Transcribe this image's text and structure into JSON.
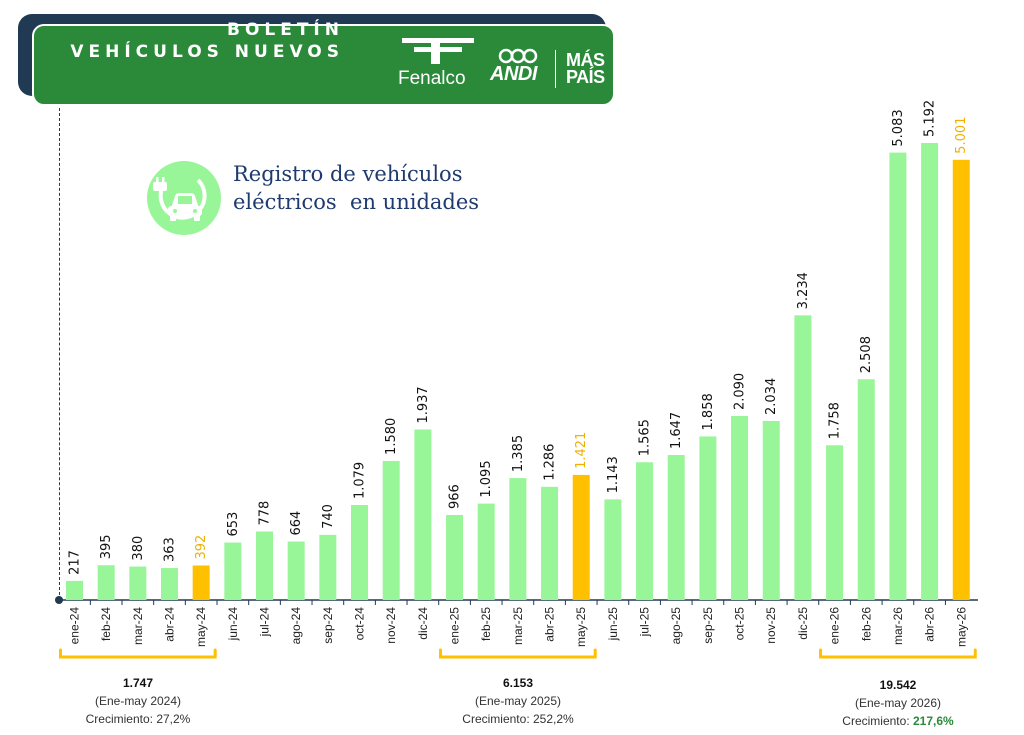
{
  "header": {
    "title_line1": "BOLETÍN",
    "title_line2": "VEHÍCULOS NUEVOS",
    "logos": [
      "Fenalco",
      "ANDI",
      "MÁS",
      "PAÍS"
    ]
  },
  "subtitle": "Registro de vehículos\neléctricos  en unidades",
  "colors": {
    "bar": "#98f598",
    "highlight": "#ffc000",
    "highlight_label": "#f0b000",
    "banner": "#2a8a3a",
    "growth": "#2a8a3a"
  },
  "chart_data": {
    "type": "bar",
    "title": "Registro de vehículos eléctricos en unidades",
    "categories": [
      "ene-24",
      "feb-24",
      "mar-24",
      "abr-24",
      "may-24",
      "jun-24",
      "jul-24",
      "ago-24",
      "sep-24",
      "oct-24",
      "nov-24",
      "dic-24",
      "ene-25",
      "feb-25",
      "mar-25",
      "abr-25",
      "may-25",
      "jun-25",
      "jul-25",
      "ago-25",
      "sep-25",
      "oct-25",
      "nov-25",
      "dic-25",
      "ene-26",
      "feb-26",
      "mar-26",
      "abr-26",
      "may-26"
    ],
    "values": [
      217,
      395,
      380,
      363,
      392,
      653,
      778,
      664,
      740,
      1079,
      1580,
      1937,
      966,
      1095,
      1385,
      1286,
      1421,
      1143,
      1565,
      1647,
      1858,
      2090,
      2034,
      3234,
      1758,
      2508,
      5083,
      5192,
      5001
    ],
    "labels": [
      "217",
      "395",
      "380",
      "363",
      "392",
      "653",
      "778",
      "664",
      "740",
      "1.079",
      "1.580",
      "1.937",
      "966",
      "1.095",
      "1.385",
      "1.286",
      "1.421",
      "1.143",
      "1.565",
      "1.647",
      "1.858",
      "2.090",
      "2.034",
      "3.234",
      "1.758",
      "2.508",
      "5.083",
      "5.192",
      "5.001"
    ],
    "highlighted": [
      "may-24",
      "may-25",
      "may-26"
    ],
    "ylim": [
      0,
      5192
    ]
  },
  "summaries": [
    {
      "total": "1.747",
      "period": "(Ene-may 2024)",
      "growth_label": "Crecimiento: ",
      "growth_value": "27,2%"
    },
    {
      "total": "6.153",
      "period": "(Ene-may 2025)",
      "growth_label": "Crecimiento: ",
      "growth_value": "252,2%"
    },
    {
      "total": "19.542",
      "period": "(Ene-may 2026)",
      "growth_label": "Crecimiento: ",
      "growth_value": "217,6%"
    }
  ]
}
